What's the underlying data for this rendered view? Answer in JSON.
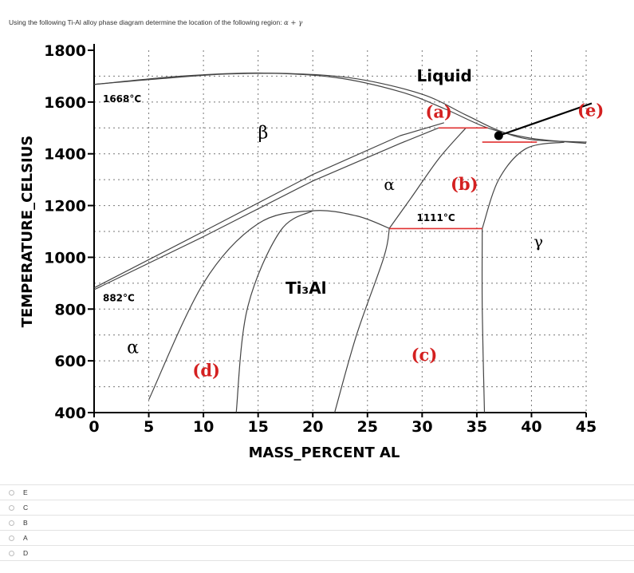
{
  "question": {
    "text": "Using the following Ti-Al alloy phase diagram determine the location of the following region:",
    "region": "α + γ"
  },
  "chart_data": {
    "type": "phase-diagram",
    "title": "",
    "xlabel": "MASS_PERCENT AL",
    "ylabel": "TEMPERATURE_CELSIUS",
    "xlim": [
      0,
      45
    ],
    "ylim": [
      400,
      1800
    ],
    "x_ticks": [
      "0",
      "5",
      "10",
      "15",
      "20",
      "25",
      "30",
      "35",
      "40",
      "45"
    ],
    "y_ticks": [
      "1800",
      "1600",
      "1400",
      "1200",
      "1000",
      "800",
      "600",
      "400"
    ],
    "grid": true,
    "annotations": {
      "liquid": "Liquid",
      "beta": "β",
      "alpha_left": "α",
      "alpha_mid": "α",
      "gamma": "γ",
      "ti3al": "Ti₃Al",
      "t1668": "1668°C",
      "t882": "882°C",
      "t1111": "1111°C",
      "label_a": "(a)",
      "label_b": "(b)",
      "label_c": "(c)",
      "label_d": "(d)",
      "label_e": "(e)"
    },
    "boundaries": {
      "liquidus": [
        [
          0,
          1668
        ],
        [
          6,
          1690
        ],
        [
          12,
          1708
        ],
        [
          18,
          1710
        ],
        [
          24,
          1690
        ],
        [
          30,
          1630
        ],
        [
          34,
          1550
        ],
        [
          37,
          1490
        ],
        [
          40,
          1455
        ],
        [
          45,
          1445
        ]
      ],
      "solidus": [
        [
          0,
          1668
        ],
        [
          8,
          1700
        ],
        [
          15,
          1712
        ],
        [
          22,
          1695
        ],
        [
          28,
          1640
        ],
        [
          32,
          1575
        ],
        [
          36,
          1500
        ],
        [
          40,
          1460
        ],
        [
          45,
          1440
        ]
      ],
      "beta_transus_upper": [
        [
          0,
          882
        ],
        [
          10,
          1100
        ],
        [
          20,
          1320
        ],
        [
          28,
          1470
        ],
        [
          32,
          1520
        ]
      ],
      "beta_transus_lower": [
        [
          0,
          875
        ],
        [
          10,
          1080
        ],
        [
          20,
          1295
        ],
        [
          28,
          1440
        ],
        [
          31.5,
          1500
        ]
      ],
      "alpha_gamma_left": [
        [
          27,
          1112
        ],
        [
          29,
          1230
        ],
        [
          31.5,
          1380
        ],
        [
          34,
          1500
        ]
      ],
      "gamma_right": [
        [
          35.5,
          1111
        ],
        [
          37,
          1300
        ],
        [
          39.5,
          1420
        ],
        [
          43,
          1445
        ]
      ],
      "ti3al_dome": [
        [
          5,
          450
        ],
        [
          10,
          900
        ],
        [
          15,
          1130
        ],
        [
          20,
          1180
        ],
        [
          24,
          1160
        ],
        [
          27,
          1112
        ]
      ],
      "ti3al_inner_left": [
        [
          13,
          400
        ],
        [
          14,
          800
        ],
        [
          17,
          1100
        ],
        [
          20,
          1180
        ]
      ],
      "ti3al_inner_right": [
        [
          22,
          400
        ],
        [
          24,
          700
        ],
        [
          26.5,
          1000
        ],
        [
          27,
          1112
        ]
      ],
      "gamma_alpha2_boundary": [
        [
          35.5,
          1111
        ],
        [
          35.5,
          800
        ],
        [
          35.7,
          400
        ]
      ],
      "eutectoid_1111": [
        [
          27,
          1111
        ],
        [
          35.5,
          1111
        ]
      ],
      "peritectic_upper": [
        [
          31.5,
          1500
        ],
        [
          36,
          1500
        ]
      ],
      "peritectic_lower": [
        [
          35.5,
          1445
        ],
        [
          40.5,
          1445
        ]
      ]
    },
    "marker": {
      "x": 37,
      "y": 1470
    }
  },
  "options": [
    "E",
    "C",
    "B",
    "A",
    "D"
  ],
  "colors": {
    "curve": "#444444",
    "grid": "#777777",
    "highlight": "#e03030",
    "label_red": "#d42020",
    "text": "#333333"
  }
}
